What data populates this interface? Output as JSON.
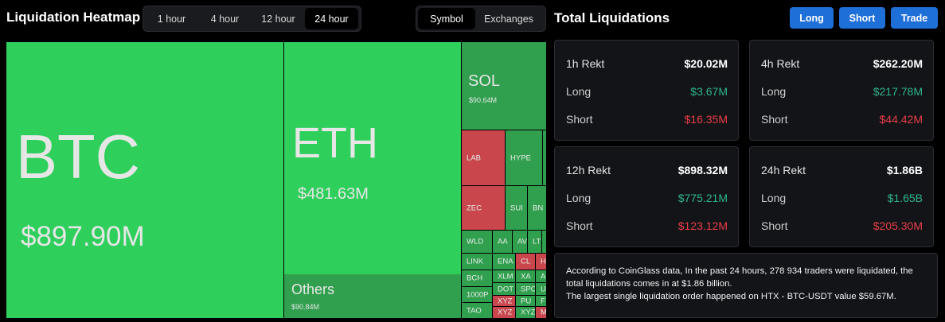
{
  "heatmap": {
    "title": "Liquidation Heatmap",
    "timeframes": [
      "1 hour",
      "4 hour",
      "12 hour",
      "24 hour"
    ],
    "active_timeframe": "24 hour",
    "modes": [
      "Symbol",
      "Exchanges"
    ],
    "active_mode": "Symbol",
    "tiles": {
      "btc": {
        "symbol": "BTC",
        "value": "$897.90M"
      },
      "eth": {
        "symbol": "ETH",
        "value": "$481.63M"
      },
      "others": {
        "symbol": "Others",
        "value": "$90.84M"
      },
      "sol": {
        "symbol": "SOL",
        "value": "$90.64M"
      },
      "lab": "LAB",
      "hype": "HYPE",
      "zec": "ZEC",
      "sui": "SUI",
      "bnb": "BN",
      "wld": "WLD",
      "aa": "AA",
      "av": "AV",
      "lt": "LT",
      "link": "LINK",
      "ena": "ENA",
      "cl": "CL",
      "h": "H",
      "bch": "BCH",
      "xlm": "XLM",
      "xa": "XA",
      "a": "A",
      "k1000p": "1000P",
      "dot": "DOT",
      "sp": "SPC",
      "u": "U",
      "tao": "TAO",
      "xyz1": "XYZ",
      "pu": "PU",
      "f": "F",
      "xyz2": "XYZ",
      "xyz3": "XYZ",
      "m": "M"
    }
  },
  "totals": {
    "title": "Total Liquidations",
    "buttons": {
      "long": "Long",
      "short": "Short",
      "trade": "Trade"
    },
    "cards": [
      {
        "label": "1h Rekt",
        "total": "$20.02M",
        "long_label": "Long",
        "long": "$3.67M",
        "short_label": "Short",
        "short": "$16.35M"
      },
      {
        "label": "4h Rekt",
        "total": "$262.20M",
        "long_label": "Long",
        "long": "$217.78M",
        "short_label": "Short",
        "short": "$44.42M"
      },
      {
        "label": "12h Rekt",
        "total": "$898.32M",
        "long_label": "Long",
        "long": "$775.21M",
        "short_label": "Short",
        "short": "$123.12M"
      },
      {
        "label": "24h Rekt",
        "total": "$1.86B",
        "long_label": "Long",
        "long": "$1.65B",
        "short_label": "Short",
        "short": "$205.30M"
      }
    ],
    "summary_line1": "According to CoinGlass data, In the past 24 hours, 278 934 traders were liquidated, the total liquidations comes in at $1.86 billion.",
    "summary_line2": "The largest single liquidation order happened on HTX - BTC-USDT value $59.67M."
  },
  "colors": {
    "long_green": "#2fb58f",
    "short_red": "#ea3e48",
    "accent_blue": "#1f6fd9",
    "tile_green": "#2fcf5c",
    "tile_dark_green": "#30a04e",
    "tile_red": "#c8464c"
  }
}
